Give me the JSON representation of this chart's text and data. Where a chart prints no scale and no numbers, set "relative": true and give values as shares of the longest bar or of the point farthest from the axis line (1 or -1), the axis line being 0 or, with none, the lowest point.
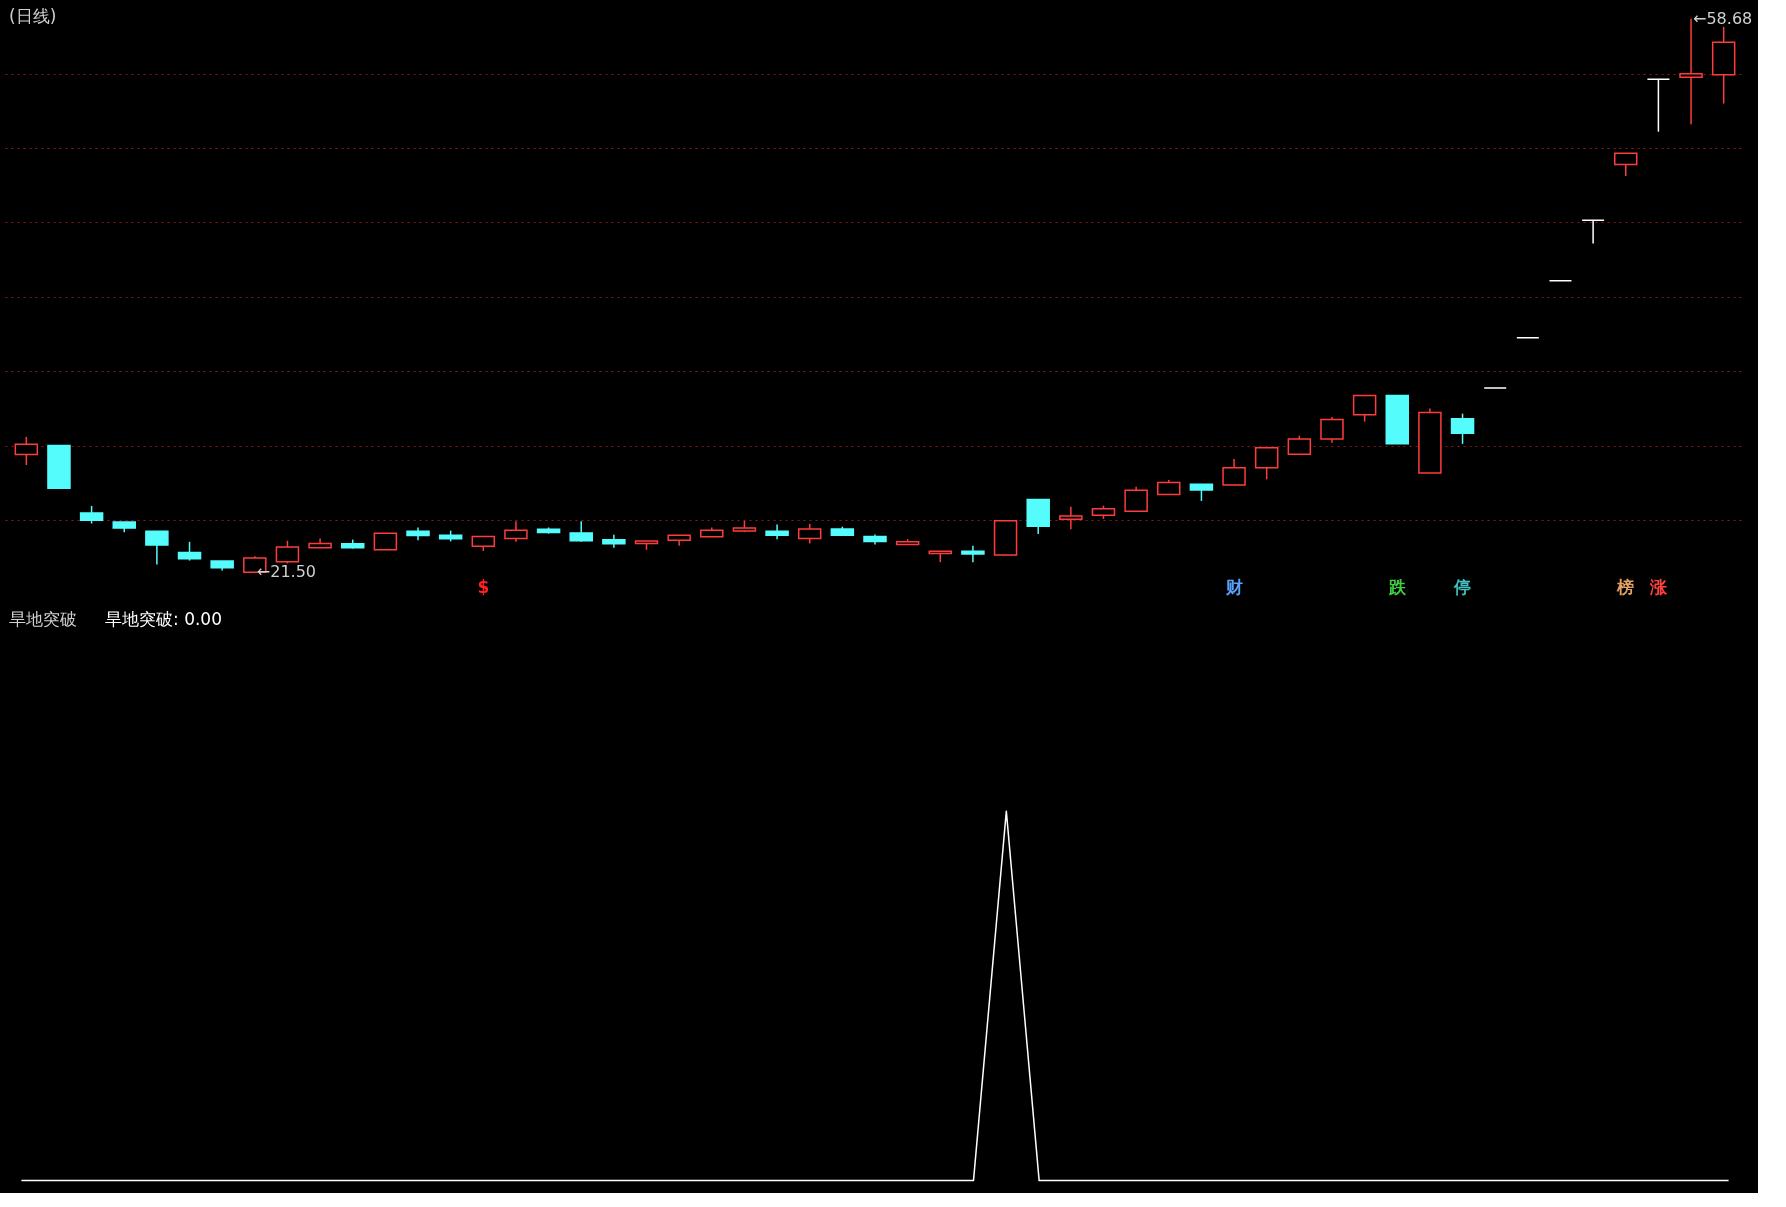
{
  "chart_data": [
    {
      "type": "candlestick",
      "title": "(日线)",
      "categories": [
        null,
        null,
        null,
        null,
        null,
        null,
        null,
        null,
        null,
        null,
        null,
        null,
        null,
        null,
        null,
        null,
        null,
        null,
        null,
        null,
        null,
        null,
        null,
        null,
        null,
        null,
        null,
        null,
        null,
        null,
        null,
        null,
        null,
        null,
        null,
        null,
        null,
        null,
        null,
        null,
        null,
        null,
        null,
        null,
        null,
        null,
        null,
        null,
        null,
        null,
        null,
        null,
        null
      ],
      "ohlc": [
        [
          29.42,
          30.6,
          28.71,
          30.1
        ],
        [
          30.02,
          30.02,
          27.14,
          27.14
        ],
        [
          25.49,
          25.96,
          24.78,
          24.99
        ],
        [
          24.88,
          24.88,
          24.2,
          24.47
        ],
        [
          24.26,
          24.26,
          22.02,
          23.33
        ],
        [
          22.83,
          23.55,
          22.29,
          22.42
        ],
        [
          22.26,
          22.26,
          21.63,
          21.81
        ],
        [
          21.5,
          22.58,
          21.5,
          22.47
        ],
        [
          22.21,
          23.62,
          22.1,
          23.2
        ],
        [
          23.15,
          23.78,
          23.15,
          23.44
        ],
        [
          23.42,
          23.7,
          23.1,
          23.15
        ],
        [
          23.02,
          24.12,
          23.02,
          24.12
        ],
        [
          24.26,
          24.51,
          23.65,
          23.97
        ],
        [
          23.99,
          24.3,
          23.58,
          23.76
        ],
        [
          23.26,
          23.91,
          22.94,
          23.91
        ],
        [
          23.78,
          24.93,
          23.55,
          24.33
        ],
        [
          24.39,
          24.51,
          24.1,
          24.18
        ],
        [
          24.15,
          24.93,
          23.55,
          23.62
        ],
        [
          23.68,
          24.02,
          23.15,
          23.42
        ],
        [
          23.44,
          23.6,
          23.02,
          23.6
        ],
        [
          23.65,
          23.99,
          23.28,
          23.99
        ],
        [
          23.89,
          24.51,
          23.89,
          24.33
        ],
        [
          24.28,
          24.96,
          24.2,
          24.47
        ],
        [
          24.26,
          24.72,
          23.73,
          23.99
        ],
        [
          23.78,
          24.75,
          23.44,
          24.41
        ],
        [
          24.41,
          24.57,
          23.99,
          23.99
        ],
        [
          23.91,
          24.04,
          23.37,
          23.57
        ],
        [
          23.37,
          23.73,
          23.37,
          23.55
        ],
        [
          22.76,
          22.91,
          22.18,
          22.91
        ],
        [
          22.91,
          23.28,
          22.18,
          22.73
        ],
        [
          22.66,
          24.96,
          22.66,
          24.96
        ],
        [
          26.4,
          26.4,
          24.07,
          24.59
        ],
        [
          25.07,
          25.9,
          24.39,
          25.28
        ],
        [
          25.33,
          25.98,
          25.09,
          25.77
        ],
        [
          25.61,
          27.25,
          25.61,
          27.01
        ],
        [
          26.72,
          27.71,
          26.72,
          27.53
        ],
        [
          27.42,
          27.42,
          26.3,
          27.03
        ],
        [
          27.36,
          29.12,
          27.36,
          28.53
        ],
        [
          28.53,
          29.86,
          27.75,
          29.86
        ],
        [
          29.43,
          30.68,
          29.43,
          30.45
        ],
        [
          30.45,
          31.93,
          30.21,
          31.77
        ],
        [
          32.09,
          33.37,
          31.62,
          33.37
        ],
        [
          33.37,
          33.37,
          30.13,
          30.13
        ],
        [
          28.18,
          32.51,
          28.18,
          32.24
        ],
        [
          31.81,
          32.16,
          30.13,
          30.84
        ],
        [
          33.88,
          33.88,
          33.88,
          33.88
        ],
        [
          37.26,
          37.26,
          37.26,
          37.26
        ],
        [
          41.09,
          41.09,
          41.09,
          41.09
        ],
        [
          45.15,
          45.15,
          43.59,
          45.15
        ],
        [
          48.9,
          49.65,
          48.13,
          49.65
        ],
        [
          54.63,
          54.63,
          51.1,
          54.63
        ],
        [
          54.76,
          58.68,
          51.6,
          54.99
        ],
        [
          54.93,
          58.13,
          52.99,
          57.1
        ]
      ],
      "colors": [
        "#ff3c3c",
        "#54fcfc",
        "#54fcfc",
        "#54fcfc",
        "#54fcfc",
        "#54fcfc",
        "#54fcfc",
        "#ff3c3c",
        "#ff3c3c",
        "#ff3c3c",
        "#54fcfc",
        "#ff3c3c",
        "#54fcfc",
        "#54fcfc",
        "#ff3c3c",
        "#ff3c3c",
        "#54fcfc",
        "#54fcfc",
        "#54fcfc",
        "#ff3c3c",
        "#ff3c3c",
        "#ff3c3c",
        "#ff3c3c",
        "#54fcfc",
        "#ff3c3c",
        "#54fcfc",
        "#54fcfc",
        "#ff3c3c",
        "#ff3c3c",
        "#54fcfc",
        "#ff3c3c",
        "#54fcfc",
        "#ff3c3c",
        "#ff3c3c",
        "#ff3c3c",
        "#ff3c3c",
        "#54fcfc",
        "#ff3c3c",
        "#ff3c3c",
        "#ff3c3c",
        "#ff3c3c",
        "#ff3c3c",
        "#54fcfc",
        "#ff3c3c",
        "#54fcfc",
        "#ffffff",
        "#ffffff",
        "#ffffff",
        "#ffffff",
        "#ff3c3c",
        "#ffffff",
        "#ff3c3c",
        "#ff3c3c"
      ],
      "yticks": [
        {
          "value": 25,
          "label": null
        },
        {
          "value": 30,
          "label": null
        },
        {
          "value": 35,
          "label": null
        },
        {
          "value": 40,
          "label": null
        },
        {
          "value": 45,
          "label": null
        },
        {
          "value": 50,
          "label": null
        },
        {
          "value": 55,
          "label": null
        }
      ],
      "grid": "y",
      "tick_labels": false,
      "annotations": [
        "←21.50",
        "←58.68",
        "$",
        "财",
        "跌",
        "停",
        "榜",
        "涨"
      ]
    },
    {
      "type": "line",
      "title": "旱地突破",
      "relative": true,
      "tick_labels": false,
      "categories": [
        null,
        null,
        null,
        null,
        null,
        null,
        null,
        null,
        null,
        null,
        null,
        null,
        null,
        null,
        null,
        null,
        null,
        null,
        null,
        null,
        null,
        null,
        null,
        null,
        null,
        null,
        null,
        null,
        null,
        null,
        null,
        null,
        null,
        null,
        null,
        null,
        null,
        null,
        null,
        null,
        null,
        null,
        null,
        null,
        null,
        null,
        null,
        null,
        null,
        null,
        null,
        null,
        null
      ],
      "series": [
        {
          "name": "旱地突破: 0.00",
          "color": "#ffffff",
          "values": [
            0,
            0,
            0,
            0,
            0,
            0,
            0,
            0,
            0,
            0,
            0,
            0,
            0,
            0,
            0,
            0,
            0,
            0,
            0,
            0,
            0,
            0,
            0,
            0,
            0,
            0,
            0,
            0,
            0,
            0,
            1,
            0,
            0,
            0,
            0,
            0,
            0,
            0,
            0,
            0,
            0,
            0,
            0,
            0,
            0,
            0,
            0,
            0,
            0,
            0,
            0,
            0,
            0
          ]
        }
      ]
    }
  ]
}
